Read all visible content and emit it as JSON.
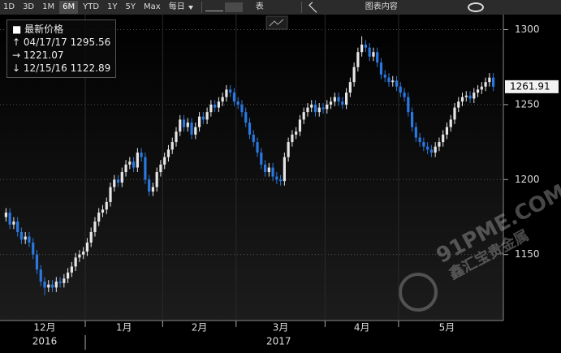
{
  "toolbar": {
    "ranges": [
      "1D",
      "3D",
      "1M",
      "6M",
      "YTD",
      "1Y",
      "5Y",
      "Max"
    ],
    "active_range": 3,
    "frequency": "每日",
    "table": "表",
    "content": "图表内容"
  },
  "chart_data": {
    "type": "candlestick",
    "legend": {
      "title": "最新价格",
      "high": {
        "date": "04/17/17",
        "value": 1295.56
      },
      "average": 1221.07,
      "low": {
        "date": "12/15/16",
        "value": 1122.89
      }
    },
    "categories": [
      "12月",
      null,
      null,
      null,
      null,
      null,
      null,
      null,
      null,
      null,
      null,
      null,
      null,
      null,
      null,
      null,
      null,
      null,
      null,
      null,
      null,
      "1月",
      null,
      null,
      null,
      null,
      null,
      null,
      null,
      null,
      null,
      null,
      null,
      null,
      null,
      null,
      null,
      null,
      null,
      null,
      null,
      "2月",
      null,
      null,
      null,
      null,
      null,
      null,
      null,
      null,
      null,
      null,
      null,
      null,
      null,
      null,
      null,
      null,
      null,
      null,
      "3月",
      null,
      null,
      null,
      null,
      null,
      null,
      null,
      null,
      null,
      null,
      null,
      null,
      null,
      null,
      null,
      null,
      null,
      null,
      null,
      null,
      null,
      null,
      "4月",
      null,
      null,
      null,
      null,
      null,
      null,
      null,
      null,
      null,
      null,
      null,
      null,
      null,
      null,
      null,
      null,
      null,
      null,
      "5月",
      null,
      null,
      null,
      null,
      null,
      null,
      null,
      null,
      null,
      null,
      null,
      null,
      null,
      null,
      null,
      null,
      null,
      null,
      null,
      null,
      null,
      null,
      null,
      null
    ],
    "years": [
      "2016",
      "2017"
    ],
    "open": [
      1175,
      1178,
      1170,
      1172,
      1165,
      1160,
      1162,
      1158,
      1150,
      1140,
      1132,
      1128,
      1130,
      1128,
      1132,
      1131,
      1134,
      1138,
      1142,
      1148,
      1150,
      1152,
      1158,
      1165,
      1172,
      1178,
      1180,
      1185,
      1195,
      1200,
      1198,
      1205,
      1210,
      1212,
      1208,
      1218,
      1215,
      1200,
      1192,
      1195,
      1205,
      1210,
      1215,
      1220,
      1225,
      1232,
      1240,
      1235,
      1238,
      1230,
      1235,
      1242,
      1240,
      1245,
      1250,
      1248,
      1252,
      1255,
      1260,
      1258,
      1252,
      1250,
      1245,
      1238,
      1230,
      1225,
      1218,
      1210,
      1205,
      1208,
      1202,
      1200,
      1199,
      1215,
      1225,
      1230,
      1232,
      1240,
      1245,
      1248,
      1250,
      1245,
      1248,
      1247,
      1250,
      1252,
      1255,
      1252,
      1250,
      1258,
      1265,
      1275,
      1285,
      1290,
      1288,
      1282,
      1285,
      1278,
      1270,
      1268,
      1265,
      1266,
      1262,
      1258,
      1255,
      1245,
      1235,
      1228,
      1225,
      1222,
      1220,
      1218,
      1222,
      1225,
      1230,
      1235,
      1240,
      1248,
      1252,
      1255,
      1256,
      1254,
      1258,
      1260,
      1262,
      1265,
      1268
    ],
    "high": [
      1181,
      1181,
      1175,
      1175,
      1168,
      1165,
      1165,
      1161,
      1153,
      1143,
      1135,
      1133,
      1133,
      1135,
      1135,
      1137,
      1141,
      1145,
      1151,
      1153,
      1155,
      1161,
      1168,
      1175,
      1181,
      1183,
      1188,
      1198,
      1203,
      1203,
      1208,
      1213,
      1215,
      1215,
      1221,
      1221,
      1218,
      1203,
      1198,
      1208,
      1213,
      1218,
      1223,
      1228,
      1235,
      1243,
      1243,
      1241,
      1241,
      1238,
      1245,
      1245,
      1248,
      1253,
      1253,
      1255,
      1258,
      1263,
      1263,
      1261,
      1255,
      1253,
      1248,
      1241,
      1233,
      1228,
      1221,
      1213,
      1211,
      1211,
      1205,
      1203,
      1218,
      1228,
      1233,
      1235,
      1243,
      1248,
      1251,
      1253,
      1253,
      1251,
      1251,
      1253,
      1255,
      1258,
      1258,
      1255,
      1261,
      1268,
      1278,
      1288,
      1295.56,
      1293,
      1291,
      1288,
      1288,
      1281,
      1273,
      1271,
      1269,
      1269,
      1265,
      1261,
      1258,
      1248,
      1238,
      1231,
      1228,
      1225,
      1223,
      1225,
      1228,
      1233,
      1238,
      1243,
      1251,
      1255,
      1258,
      1259,
      1259,
      1261,
      1263,
      1265,
      1268,
      1271,
      1271
    ],
    "low": [
      1172,
      1167,
      1167,
      1162,
      1157,
      1157,
      1155,
      1147,
      1137,
      1129,
      1122.89,
      1125,
      1125,
      1125,
      1128,
      1128,
      1131,
      1135,
      1139,
      1145,
      1147,
      1149,
      1155,
      1162,
      1169,
      1175,
      1177,
      1182,
      1192,
      1195,
      1195,
      1202,
      1207,
      1205,
      1205,
      1212,
      1197,
      1189,
      1189,
      1192,
      1202,
      1207,
      1212,
      1217,
      1222,
      1229,
      1232,
      1232,
      1227,
      1227,
      1232,
      1237,
      1237,
      1242,
      1245,
      1245,
      1249,
      1252,
      1255,
      1249,
      1247,
      1242,
      1235,
      1227,
      1222,
      1215,
      1207,
      1202,
      1202,
      1199,
      1197,
      1196,
      1196,
      1212,
      1222,
      1227,
      1229,
      1237,
      1242,
      1245,
      1242,
      1242,
      1244,
      1244,
      1247,
      1249,
      1249,
      1247,
      1247,
      1255,
      1262,
      1272,
      1282,
      1285,
      1279,
      1279,
      1275,
      1267,
      1265,
      1262,
      1262,
      1259,
      1255,
      1252,
      1242,
      1232,
      1225,
      1222,
      1219,
      1217,
      1215,
      1215,
      1219,
      1222,
      1227,
      1232,
      1237,
      1245,
      1249,
      1252,
      1251,
      1251,
      1255,
      1257,
      1259,
      1262,
      1259
    ],
    "close": [
      1178,
      1170,
      1172,
      1165,
      1160,
      1162,
      1158,
      1150,
      1140,
      1132,
      1128,
      1130,
      1128,
      1132,
      1131,
      1134,
      1138,
      1142,
      1148,
      1150,
      1152,
      1158,
      1165,
      1172,
      1178,
      1180,
      1185,
      1195,
      1200,
      1198,
      1205,
      1210,
      1212,
      1208,
      1218,
      1215,
      1200,
      1192,
      1195,
      1205,
      1210,
      1215,
      1220,
      1225,
      1232,
      1240,
      1235,
      1238,
      1230,
      1235,
      1242,
      1240,
      1245,
      1250,
      1248,
      1252,
      1255,
      1260,
      1258,
      1252,
      1250,
      1245,
      1238,
      1230,
      1225,
      1218,
      1210,
      1205,
      1208,
      1202,
      1200,
      1199,
      1215,
      1225,
      1230,
      1232,
      1240,
      1245,
      1248,
      1250,
      1245,
      1248,
      1247,
      1250,
      1252,
      1255,
      1252,
      1250,
      1258,
      1265,
      1275,
      1285,
      1290,
      1288,
      1282,
      1285,
      1278,
      1270,
      1268,
      1265,
      1266,
      1262,
      1258,
      1255,
      1245,
      1235,
      1228,
      1225,
      1222,
      1220,
      1218,
      1222,
      1225,
      1230,
      1235,
      1240,
      1248,
      1252,
      1255,
      1256,
      1254,
      1258,
      1260,
      1262,
      1265,
      1268,
      1261.91
    ],
    "up_color": "#e6e6e6",
    "down_color": "#2a78e0",
    "ylim": [
      1106,
      1310
    ],
    "yticks": [
      1150,
      1200,
      1250,
      1300
    ],
    "grid": true,
    "watermark": "91PME.COM",
    "watermark_sub": "鑫汇宝贵金属"
  }
}
